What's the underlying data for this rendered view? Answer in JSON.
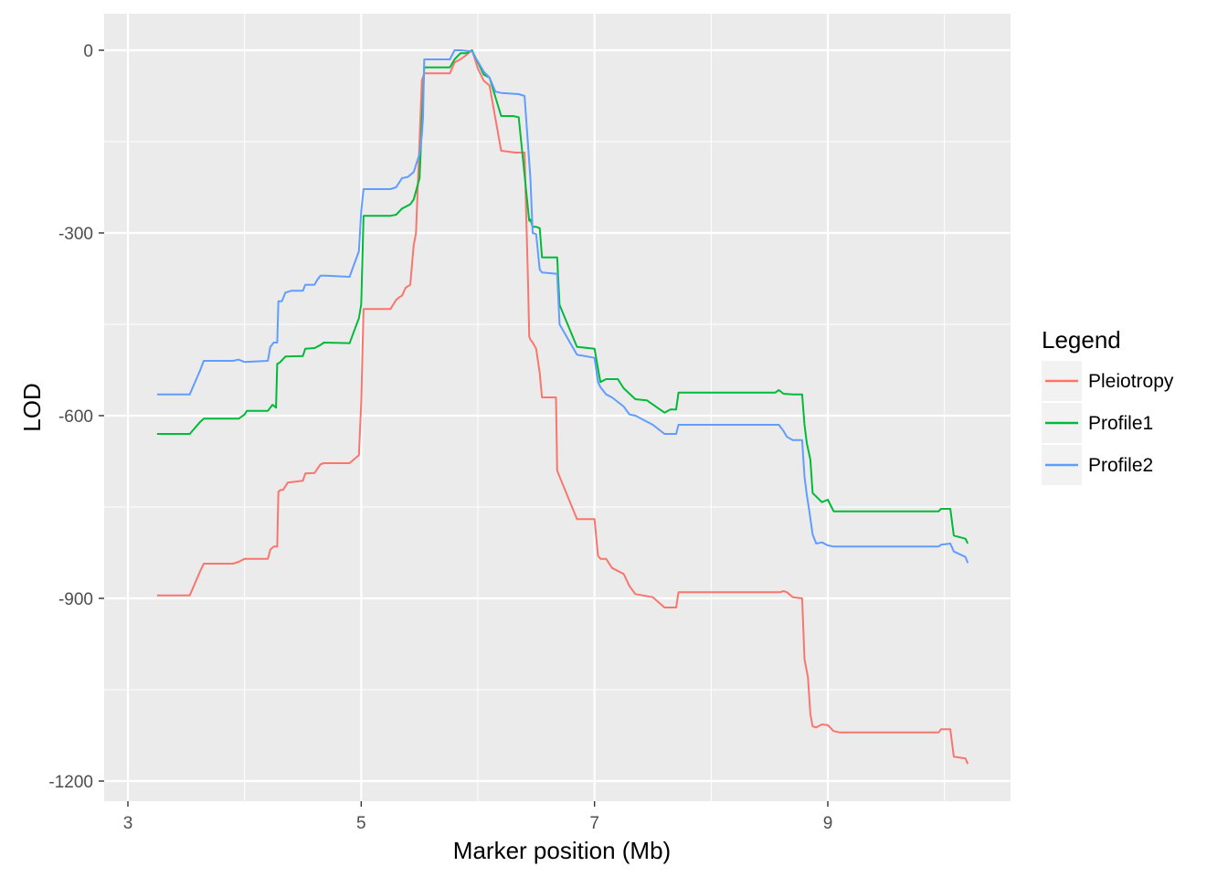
{
  "chart_data": {
    "type": "line",
    "title": "",
    "xlabel": "Marker position (Mb)",
    "ylabel": "LOD",
    "xlim": [
      2.9,
      10.6
    ],
    "ylim": [
      -1230,
      20
    ],
    "xticks": [
      3,
      5,
      7,
      9
    ],
    "yticks": [
      0,
      -300,
      -600,
      -900,
      -1200
    ],
    "xtick_labels": [
      "3",
      "5",
      "7",
      "9"
    ],
    "ytick_labels": [
      "0",
      "-300",
      "-600",
      "-900",
      "-1200"
    ],
    "grid": true,
    "legend": {
      "title": "Legend",
      "position": "right"
    },
    "series": [
      {
        "name": "Pleiotropy",
        "color": "#F8766D",
        "x": [
          3.25,
          3.53,
          3.62,
          3.65,
          3.9,
          3.95,
          4.0,
          4.2,
          4.22,
          4.25,
          4.28,
          4.29,
          4.31,
          4.33,
          4.37,
          4.5,
          4.52,
          4.6,
          4.65,
          4.68,
          4.9,
          4.98,
          5.0,
          5.02,
          5.25,
          5.3,
          5.33,
          5.35,
          5.38,
          5.42,
          5.45,
          5.47,
          5.52,
          5.54,
          5.56,
          5.76,
          5.8,
          5.85,
          5.9,
          5.95,
          6.0,
          6.05,
          6.1,
          6.2,
          6.32,
          6.4,
          6.43,
          6.44,
          6.45,
          6.47,
          6.5,
          6.53,
          6.55,
          6.67,
          6.68,
          6.7,
          6.85,
          7.0,
          7.03,
          7.05,
          7.1,
          7.15,
          7.25,
          7.3,
          7.35,
          7.5,
          7.6,
          7.62,
          7.7,
          7.72,
          8.0,
          8.59,
          8.62,
          8.65,
          8.7,
          8.78,
          8.8,
          8.83,
          8.85,
          8.87,
          8.9,
          8.95,
          9.0,
          9.05,
          9.1,
          9.95,
          9.97,
          10.05,
          10.08,
          10.18,
          10.2
        ],
        "values": [
          -895,
          -895,
          -855,
          -843,
          -843,
          -840,
          -835,
          -835,
          -820,
          -815,
          -815,
          -725,
          -722,
          -722,
          -710,
          -707,
          -695,
          -694,
          -680,
          -678,
          -678,
          -665,
          -580,
          -425,
          -425,
          -410,
          -405,
          -403,
          -390,
          -385,
          -320,
          -300,
          -50,
          -38,
          -38,
          -38,
          -20,
          -15,
          -8,
          0,
          -30,
          -50,
          -58,
          -165,
          -168,
          -168,
          -380,
          -470,
          -475,
          -480,
          -490,
          -530,
          -570,
          -570,
          -690,
          -700,
          -770,
          -770,
          -830,
          -835,
          -835,
          -850,
          -860,
          -880,
          -893,
          -898,
          -915,
          -915,
          -915,
          -890,
          -890,
          -890,
          -888,
          -890,
          -898,
          -900,
          -1000,
          -1030,
          -1090,
          -1110,
          -1112,
          -1107,
          -1108,
          -1118,
          -1120,
          -1120,
          -1115,
          -1115,
          -1160,
          -1163,
          -1172
        ]
      },
      {
        "name": "Profile1",
        "color": "#00BA38",
        "x": [
          3.25,
          3.53,
          3.62,
          3.65,
          3.95,
          4.0,
          4.02,
          4.2,
          4.24,
          4.27,
          4.28,
          4.3,
          4.35,
          4.5,
          4.52,
          4.6,
          4.65,
          4.68,
          4.9,
          4.98,
          5.0,
          5.02,
          5.25,
          5.3,
          5.35,
          5.42,
          5.45,
          5.5,
          5.54,
          5.56,
          5.76,
          5.8,
          5.85,
          5.9,
          5.95,
          6.05,
          6.1,
          6.2,
          6.3,
          6.35,
          6.44,
          6.45,
          6.47,
          6.5,
          6.53,
          6.55,
          6.68,
          6.7,
          6.85,
          7.0,
          7.05,
          7.1,
          7.2,
          7.25,
          7.35,
          7.45,
          7.6,
          7.65,
          7.7,
          7.72,
          8.0,
          8.55,
          8.58,
          8.62,
          8.7,
          8.78,
          8.8,
          8.82,
          8.85,
          8.87,
          8.95,
          9.0,
          9.05,
          9.95,
          9.97,
          10.05,
          10.08,
          10.18,
          10.2
        ],
        "values": [
          -630,
          -630,
          -610,
          -605,
          -605,
          -598,
          -592,
          -592,
          -582,
          -587,
          -515,
          -513,
          -503,
          -502,
          -490,
          -489,
          -484,
          -480,
          -481,
          -440,
          -418,
          -272,
          -272,
          -270,
          -260,
          -253,
          -245,
          -210,
          -28,
          -28,
          -28,
          -15,
          -5,
          -5,
          0,
          -40,
          -45,
          -108,
          -108,
          -110,
          -280,
          -278,
          -290,
          -290,
          -292,
          -340,
          -340,
          -418,
          -487,
          -490,
          -545,
          -540,
          -540,
          -555,
          -573,
          -575,
          -595,
          -590,
          -590,
          -562,
          -562,
          -562,
          -558,
          -564,
          -565,
          -565,
          -615,
          -645,
          -672,
          -727,
          -742,
          -738,
          -757,
          -757,
          -753,
          -753,
          -797,
          -802,
          -810
        ]
      },
      {
        "name": "Profile2",
        "color": "#619CFF",
        "x": [
          3.25,
          3.53,
          3.62,
          3.65,
          3.9,
          3.95,
          4.0,
          4.2,
          4.22,
          4.25,
          4.28,
          4.29,
          4.32,
          4.35,
          4.4,
          4.5,
          4.52,
          4.6,
          4.62,
          4.65,
          4.7,
          4.9,
          4.98,
          5.0,
          5.02,
          5.25,
          5.3,
          5.35,
          5.4,
          5.45,
          5.5,
          5.52,
          5.53,
          5.54,
          5.56,
          5.76,
          5.8,
          5.85,
          5.95,
          6.05,
          6.1,
          6.15,
          6.2,
          6.35,
          6.4,
          6.45,
          6.47,
          6.5,
          6.53,
          6.55,
          6.68,
          6.7,
          6.85,
          7.0,
          7.03,
          7.05,
          7.1,
          7.15,
          7.25,
          7.3,
          7.35,
          7.5,
          7.6,
          7.62,
          7.7,
          7.72,
          8.0,
          8.58,
          8.62,
          8.65,
          8.7,
          8.78,
          8.8,
          8.82,
          8.84,
          8.87,
          8.9,
          8.95,
          9.0,
          9.05,
          9.95,
          9.97,
          10.05,
          10.08,
          10.18,
          10.2
        ],
        "values": [
          -565,
          -565,
          -525,
          -510,
          -510,
          -508,
          -512,
          -510,
          -487,
          -480,
          -480,
          -412,
          -412,
          -398,
          -395,
          -395,
          -385,
          -385,
          -378,
          -370,
          -370,
          -372,
          -330,
          -265,
          -228,
          -228,
          -225,
          -210,
          -208,
          -200,
          -170,
          -140,
          -110,
          -15,
          -15,
          -15,
          0,
          0,
          -2,
          -35,
          -45,
          -68,
          -70,
          -72,
          -75,
          -210,
          -300,
          -302,
          -360,
          -365,
          -367,
          -450,
          -500,
          -505,
          -545,
          -553,
          -565,
          -570,
          -585,
          -598,
          -600,
          -615,
          -630,
          -630,
          -630,
          -615,
          -615,
          -615,
          -625,
          -635,
          -640,
          -640,
          -700,
          -730,
          -755,
          -795,
          -810,
          -808,
          -813,
          -815,
          -815,
          -812,
          -810,
          -823,
          -832,
          -842
        ]
      }
    ]
  }
}
